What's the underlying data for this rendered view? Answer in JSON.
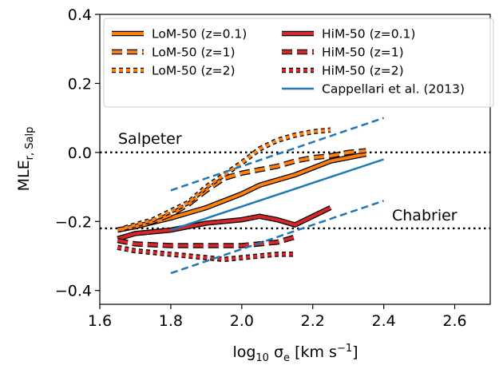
{
  "chart_data": {
    "type": "line",
    "xlabel_main": "log",
    "xlabel_sub": "10",
    "xlabel_sigma": " σ",
    "xlabel_sigma_sub": "e",
    "xlabel_units": " [km s",
    "xlabel_units_sup": "−1",
    "xlabel_close": "]",
    "ylabel_main": "MLE",
    "ylabel_sub": "r, Salp",
    "xlim": [
      1.6,
      2.7
    ],
    "ylim": [
      -0.44,
      0.4
    ],
    "xticks": [
      1.6,
      1.8,
      2.0,
      2.2,
      2.4,
      2.6
    ],
    "xtick_labels": [
      "1.6",
      "1.8",
      "2.0",
      "2.2",
      "2.4",
      "2.6"
    ],
    "yticks": [
      -0.4,
      -0.2,
      0.0,
      0.2,
      0.4
    ],
    "ytick_labels": [
      "−0.4",
      "−0.2",
      "0.0",
      "0.2",
      "0.4"
    ],
    "grid": false,
    "legend_placement": "top",
    "reference_lines": [
      {
        "label": "Salpeter",
        "y": 0.0
      },
      {
        "label": "Chabrier",
        "y": -0.22
      }
    ],
    "series": [
      {
        "name": "LoM-50 (z=0.1)",
        "color": "#ff7f0e",
        "style": "solid",
        "x": [
          1.65,
          1.7,
          1.8,
          1.9,
          2.0,
          2.05,
          2.1,
          2.15,
          2.2,
          2.25,
          2.35
        ],
        "y": [
          -0.225,
          -0.215,
          -0.19,
          -0.16,
          -0.12,
          -0.095,
          -0.08,
          -0.065,
          -0.045,
          -0.025,
          -0.005
        ]
      },
      {
        "name": "LoM-50 (z=1)",
        "color": "#ff7f0e",
        "style": "dashed",
        "x": [
          1.65,
          1.7,
          1.75,
          1.8,
          1.85,
          1.9,
          1.95,
          2.0,
          2.05,
          2.1,
          2.15,
          2.2,
          2.25,
          2.3,
          2.35
        ],
        "y": [
          -0.225,
          -0.215,
          -0.2,
          -0.18,
          -0.15,
          -0.11,
          -0.075,
          -0.06,
          -0.05,
          -0.04,
          -0.025,
          -0.015,
          -0.01,
          0.0,
          0.005
        ]
      },
      {
        "name": "LoM-50 (z=2)",
        "color": "#ff7f0e",
        "style": "dotted",
        "x": [
          1.65,
          1.7,
          1.75,
          1.8,
          1.85,
          1.9,
          1.95,
          2.0,
          2.05,
          2.1,
          2.15,
          2.2,
          2.25
        ],
        "y": [
          -0.225,
          -0.21,
          -0.195,
          -0.17,
          -0.145,
          -0.1,
          -0.065,
          -0.03,
          0.01,
          0.035,
          0.05,
          0.06,
          0.065
        ]
      },
      {
        "name": "HiM-50 (z=0.1)",
        "color": "#d62728",
        "style": "solid",
        "x": [
          1.65,
          1.7,
          1.75,
          1.8,
          1.9,
          2.0,
          2.05,
          2.1,
          2.15,
          2.2,
          2.25
        ],
        "y": [
          -0.25,
          -0.235,
          -0.23,
          -0.225,
          -0.205,
          -0.195,
          -0.185,
          -0.195,
          -0.21,
          -0.185,
          -0.16
        ]
      },
      {
        "name": "HiM-50 (z=1)",
        "color": "#d62728",
        "style": "dashed",
        "x": [
          1.65,
          1.7,
          1.8,
          1.9,
          2.0,
          2.05,
          2.1,
          2.15
        ],
        "y": [
          -0.255,
          -0.265,
          -0.27,
          -0.27,
          -0.27,
          -0.265,
          -0.26,
          -0.245
        ]
      },
      {
        "name": "HiM-50 (z=2)",
        "color": "#d62728",
        "style": "dotted",
        "x": [
          1.65,
          1.7,
          1.8,
          1.9,
          1.95,
          2.0,
          2.05,
          2.1,
          2.15
        ],
        "y": [
          -0.275,
          -0.285,
          -0.295,
          -0.305,
          -0.31,
          -0.305,
          -0.3,
          -0.295,
          -0.295
        ]
      },
      {
        "name": "Cappellari et al. (2013)",
        "color": "#1f77b4",
        "style": "solid",
        "x": [
          1.8,
          2.4
        ],
        "y": [
          -0.225,
          -0.02
        ]
      },
      {
        "name": "",
        "color": "#1f77b4",
        "style": "dashed",
        "x": [
          1.8,
          2.4
        ],
        "y": [
          -0.11,
          0.1
        ]
      },
      {
        "name": "",
        "color": "#1f77b4",
        "style": "dashed",
        "x": [
          1.8,
          2.4
        ],
        "y": [
          -0.35,
          -0.14
        ]
      }
    ],
    "legend": [
      {
        "name": "LoM-50 (z=0.1)",
        "color": "#ff7f0e",
        "style": "solid"
      },
      {
        "name": "LoM-50 (z=1)",
        "color": "#ff7f0e",
        "style": "dashed"
      },
      {
        "name": "LoM-50 (z=2)",
        "color": "#ff7f0e",
        "style": "dotted"
      },
      {
        "name": "HiM-50 (z=0.1)",
        "color": "#d62728",
        "style": "solid"
      },
      {
        "name": "HiM-50 (z=1)",
        "color": "#d62728",
        "style": "dashed"
      },
      {
        "name": "HiM-50 (z=2)",
        "color": "#d62728",
        "style": "dotted"
      },
      {
        "name": "Cappellari et al. (2013)",
        "color": "#1f77b4",
        "style": "solid"
      }
    ]
  }
}
